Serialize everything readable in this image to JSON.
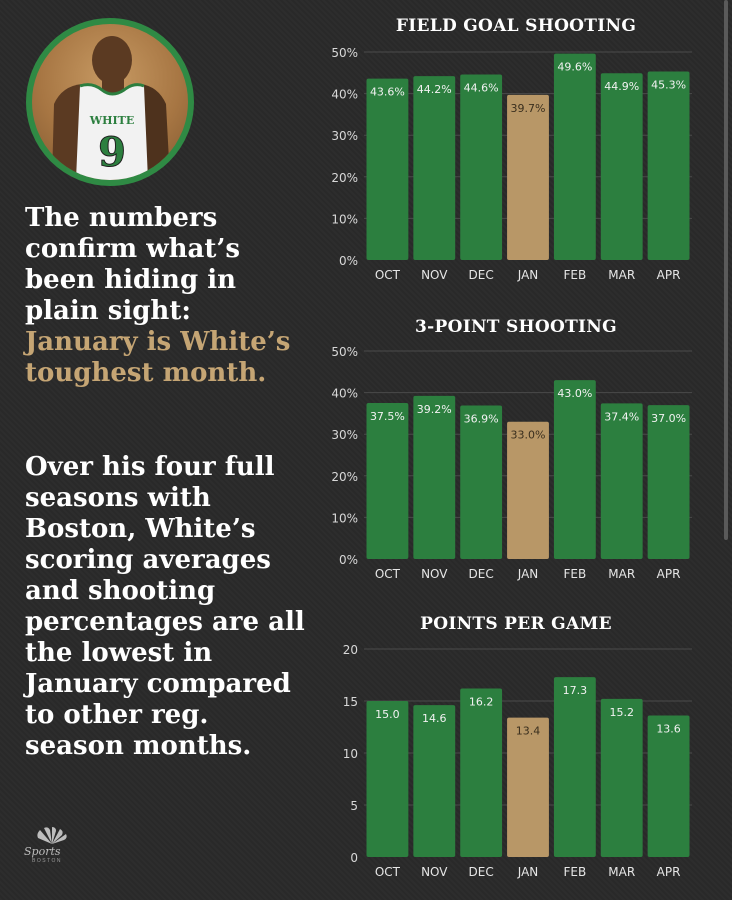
{
  "headline": {
    "part1": "The numbers confirm what’s been hiding in plain sight:",
    "part2": "January is White’s toughest month."
  },
  "paragraph": "Over his four full seasons with Boston, White’s scoring averages and shooting percentages are all the lowest in January compared to other reg. season months.",
  "jersey": {
    "name": "WHITE",
    "number": "9"
  },
  "logo": {
    "word": "Sports",
    "sub": "BOSTON"
  },
  "colors": {
    "green": "#2c7f3f",
    "gold": "#b89767",
    "background": "#2a2a2a",
    "ring": "#2f8a44"
  },
  "chart_data": [
    {
      "type": "bar",
      "title": "FIELD GOAL SHOOTING",
      "categories": [
        "OCT",
        "NOV",
        "DEC",
        "JAN",
        "FEB",
        "MAR",
        "APR"
      ],
      "values": [
        43.6,
        44.2,
        44.6,
        39.7,
        49.6,
        44.9,
        45.3
      ],
      "labels": [
        "43.6%",
        "44.2%",
        "44.6%",
        "39.7%",
        "49.6%",
        "44.9%",
        "45.3%"
      ],
      "highlight": "JAN",
      "ylim": [
        0,
        50
      ],
      "yticks": [
        0,
        10,
        20,
        30,
        40,
        50
      ],
      "ytick_labels": [
        "0%",
        "10%",
        "20%",
        "30%",
        "40%",
        "50%"
      ],
      "grid": true
    },
    {
      "type": "bar",
      "title": "3-POINT SHOOTING",
      "categories": [
        "OCT",
        "NOV",
        "DEC",
        "JAN",
        "FEB",
        "MAR",
        "APR"
      ],
      "values": [
        37.5,
        39.2,
        36.9,
        33.0,
        43.0,
        37.4,
        37.0
      ],
      "labels": [
        "37.5%",
        "39.2%",
        "36.9%",
        "33.0%",
        "43.0%",
        "37.4%",
        "37.0%"
      ],
      "highlight": "JAN",
      "ylim": [
        0,
        50
      ],
      "yticks": [
        0,
        10,
        20,
        30,
        40,
        50
      ],
      "ytick_labels": [
        "0%",
        "10%",
        "20%",
        "30%",
        "40%",
        "50%"
      ],
      "grid": true
    },
    {
      "type": "bar",
      "title": "POINTS PER GAME",
      "categories": [
        "OCT",
        "NOV",
        "DEC",
        "JAN",
        "FEB",
        "MAR",
        "APR"
      ],
      "values": [
        15.0,
        14.6,
        16.2,
        13.4,
        17.3,
        15.2,
        13.6
      ],
      "labels": [
        "15.0",
        "14.6",
        "16.2",
        "13.4",
        "17.3",
        "15.2",
        "13.6"
      ],
      "highlight": "JAN",
      "ylim": [
        0,
        20
      ],
      "yticks": [
        0,
        5,
        10,
        15,
        20
      ],
      "ytick_labels": [
        "0",
        "5",
        "10",
        "15",
        "20"
      ],
      "grid": true
    }
  ]
}
